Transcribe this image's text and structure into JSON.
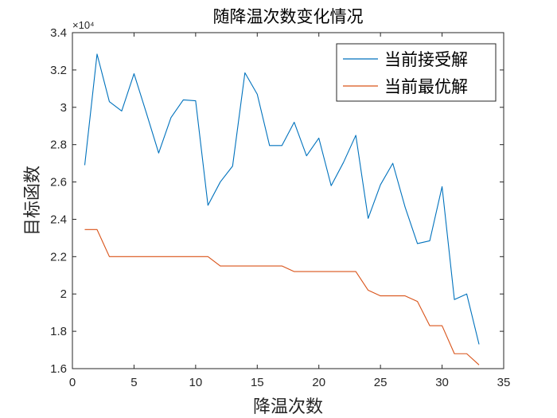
{
  "chart_data": {
    "type": "line",
    "title": "随降温次数变化情况",
    "xlabel": "降温次数",
    "ylabel": "目标函数",
    "y_exponent_label": "×10⁴",
    "xlim": [
      0,
      35
    ],
    "ylim": [
      16000,
      34000
    ],
    "xticks": [
      0,
      5,
      10,
      15,
      20,
      25,
      30,
      35
    ],
    "yticks": [
      16000,
      18000,
      20000,
      22000,
      24000,
      26000,
      28000,
      30000,
      32000,
      34000
    ],
    "ytick_labels": [
      "1.6",
      "1.8",
      "2",
      "2.2",
      "2.4",
      "2.6",
      "2.8",
      "3",
      "3.2",
      "3.4"
    ],
    "legend_position": "top-right",
    "grid": false,
    "x": [
      1,
      2,
      3,
      4,
      5,
      6,
      7,
      8,
      9,
      10,
      11,
      12,
      13,
      14,
      15,
      16,
      17,
      18,
      19,
      20,
      21,
      22,
      23,
      24,
      25,
      26,
      27,
      28,
      29,
      30,
      31,
      32,
      33
    ],
    "series": [
      {
        "name": "当前接受解",
        "color": "#0072BD",
        "values": [
          26900,
          32850,
          30300,
          29800,
          31800,
          29700,
          27550,
          29450,
          30400,
          30350,
          24750,
          26000,
          26850,
          31850,
          30700,
          27950,
          27950,
          29200,
          27400,
          28350,
          25800,
          27050,
          28500,
          24050,
          25850,
          27000,
          24650,
          22700,
          22850,
          25750,
          19700,
          20000,
          17300
        ]
      },
      {
        "name": "当前最优解",
        "color": "#D95319",
        "values": [
          23450,
          23450,
          22000,
          22000,
          22000,
          22000,
          22000,
          22000,
          22000,
          22000,
          22000,
          21500,
          21500,
          21500,
          21500,
          21500,
          21500,
          21200,
          21200,
          21200,
          21200,
          21200,
          21200,
          20200,
          19900,
          19900,
          19900,
          19600,
          18300,
          18300,
          16800,
          16800,
          16200
        ]
      }
    ]
  }
}
